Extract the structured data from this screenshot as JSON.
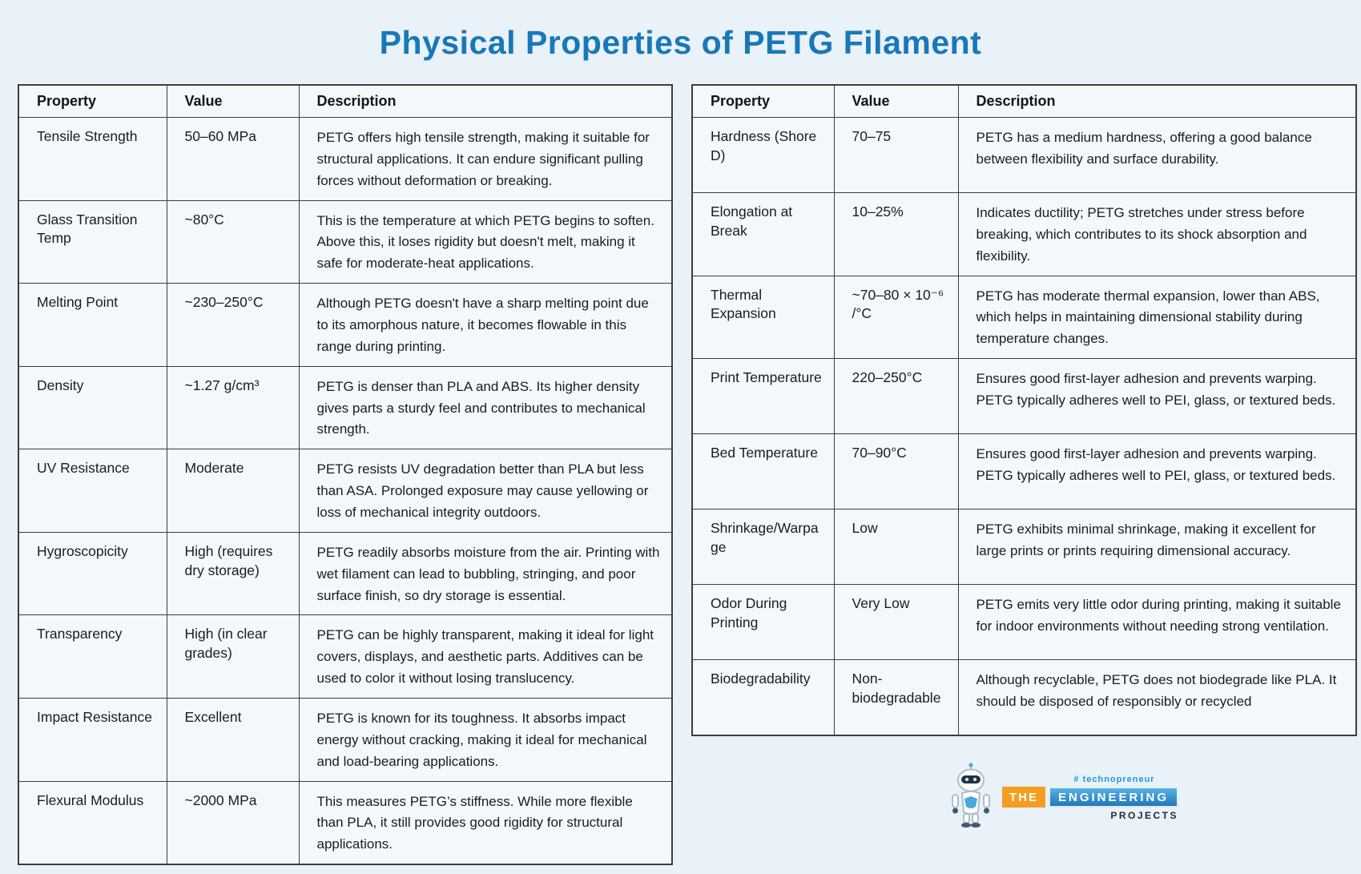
{
  "title": "Physical Properties of PETG Filament",
  "tables": {
    "left": {
      "headers": [
        "Property",
        "Value",
        "Description"
      ],
      "rows": [
        {
          "property": "Tensile Strength",
          "value": "50–60 MPa",
          "description": "PETG offers high tensile strength, making it suitable for structural applications. It can endure significant pulling forces without deformation or breaking."
        },
        {
          "property": "Glass Transition Temp",
          "value": "~80°C",
          "description": "This is the temperature at which PETG begins to soften. Above this, it loses rigidity but doesn't melt, making it safe for moderate-heat applications."
        },
        {
          "property": "Melting Point",
          "value": "~230–250°C",
          "description": "Although PETG doesn't have a sharp melting point due to its amorphous nature, it becomes flowable in this range during printing."
        },
        {
          "property": "Density",
          "value": "~1.27 g/cm³",
          "description": "PETG is denser than PLA and ABS. Its higher density gives parts a sturdy feel and contributes to mechanical strength."
        },
        {
          "property": "UV Resistance",
          "value": "Moderate",
          "description": "PETG resists UV degradation better than PLA but less than ASA. Prolonged exposure may cause yellowing or loss of mechanical integrity outdoors."
        },
        {
          "property": "Hygroscopicity",
          "value": "High (requires dry storage)",
          "description": "PETG readily absorbs moisture from the air. Printing with wet filament can lead to bubbling, stringing, and poor surface finish, so dry storage is essential."
        },
        {
          "property": "Transparency",
          "value": "High (in clear grades)",
          "description": "PETG can be highly transparent, making it ideal for light covers, displays, and aesthetic parts. Additives can be used to color it without losing translucency."
        },
        {
          "property": "Impact Resistance",
          "value": "Excellent",
          "description": "PETG is known for its toughness. It absorbs impact energy without cracking, making it ideal for mechanical and load-bearing applications."
        },
        {
          "property": "Flexural Modulus",
          "value": "~2000 MPa",
          "description": "This measures PETG’s stiffness. While more flexible than PLA, it still provides good rigidity for structural applications."
        }
      ]
    },
    "right": {
      "headers": [
        "Property",
        "Value",
        "Description"
      ],
      "rows": [
        {
          "property": "Hardness (Shore D)",
          "value": "70–75",
          "description": "PETG has a medium hardness, offering a good balance between flexibility and surface durability."
        },
        {
          "property": "Elongation at Break",
          "value": "10–25%",
          "description": "Indicates ductility; PETG stretches under stress before breaking, which contributes to its shock absorption and flexibility."
        },
        {
          "property": "Thermal Expansion",
          "value": "~70–80 × 10⁻⁶ /°C",
          "description": "PETG has moderate thermal expansion, lower than ABS, which helps in maintaining dimensional stability during temperature changes."
        },
        {
          "property": "Print Temperature",
          "value": "220–250°C",
          "description": "Ensures good first-layer adhesion and prevents warping. PETG typically adheres well to PEI, glass, or textured beds."
        },
        {
          "property": "Bed Temperature",
          "value": "70–90°C",
          "description": "Ensures good first-layer adhesion and prevents warping. PETG typically adheres well to PEI, glass, or textured beds."
        },
        {
          "property": "Shrinkage/Warpage",
          "value": "Low",
          "description": "PETG exhibits minimal shrinkage, making it excellent for large prints or prints requiring dimensional accuracy."
        },
        {
          "property": "Odor During Printing",
          "value": "Very Low",
          "description": "PETG emits very little odor during printing, making it suitable for indoor environments without needing strong ventilation."
        },
        {
          "property": "Biodegradability",
          "value": "Non-biodegradable",
          "description": "Although recyclable, PETG does not biodegrade like PLA. It should be disposed of responsibly or recycled"
        }
      ]
    }
  },
  "logo": {
    "hashtag": "# technopreneur",
    "the": "THE",
    "engineering": "ENGINEERING",
    "projects": "PROJECTS"
  },
  "colors": {
    "title_blue": "#1878b8",
    "page_background": "#e9f1f9",
    "cell_background": "#f3f8fc",
    "table_border": "#3d3d3d",
    "logo_orange": "#f59d1f",
    "logo_blue_top": "#5fb8ea",
    "logo_blue_bottom": "#1b72b4",
    "logo_navy": "#232a3a",
    "logo_hashtag_blue": "#1e9ad6"
  }
}
